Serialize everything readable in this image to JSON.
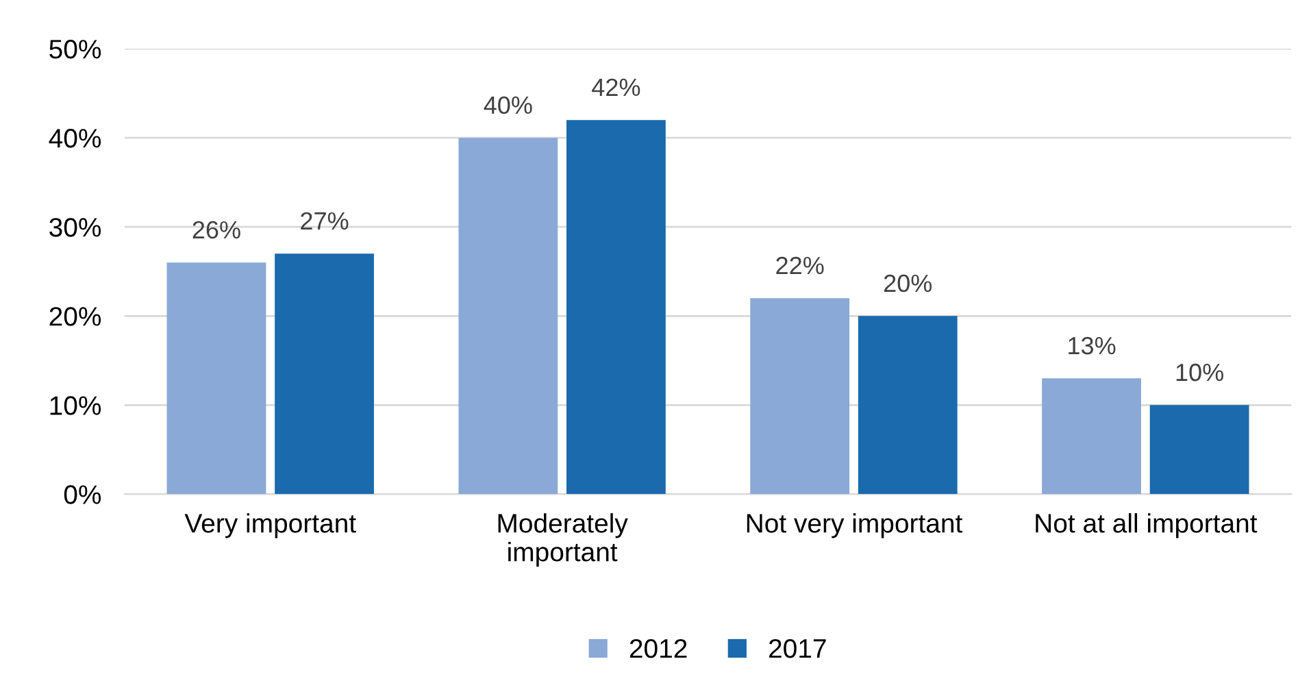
{
  "chart_data": {
    "type": "bar",
    "categories": [
      "Very important",
      "Moderately\nimportant",
      "Not very important",
      "Not at all important"
    ],
    "series": [
      {
        "name": "2012",
        "color": "#8aa9d6",
        "values": [
          26,
          40,
          22,
          13
        ],
        "value_labels": [
          "26%",
          "40%",
          "22%",
          "13%"
        ]
      },
      {
        "name": "2017",
        "color": "#1a6aad",
        "values": [
          27,
          42,
          20,
          10
        ],
        "value_labels": [
          "27%",
          "42%",
          "20%",
          "10%"
        ]
      }
    ],
    "ylim": [
      0,
      50
    ],
    "yticks": [
      {
        "value": 0,
        "label": "0%"
      },
      {
        "value": 10,
        "label": "10%"
      },
      {
        "value": 20,
        "label": "20%"
      },
      {
        "value": 30,
        "label": "30%"
      },
      {
        "value": 40,
        "label": "40%"
      },
      {
        "value": 50,
        "label": "50%"
      }
    ],
    "grid": "y",
    "legend": "bottom"
  }
}
